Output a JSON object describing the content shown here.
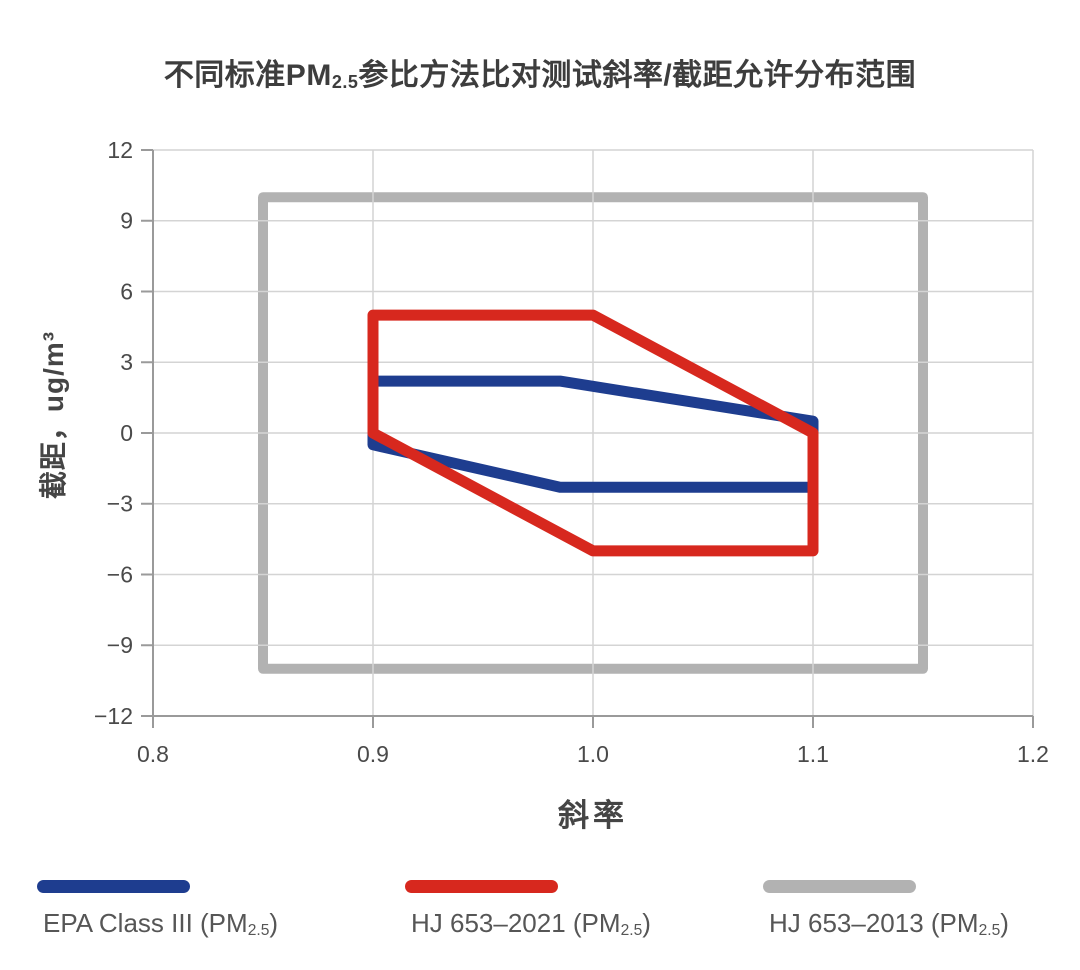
{
  "title": {
    "prefix": "不同标准PM",
    "sub": "2.5",
    "suffix": "参比方法比对测试斜率/截距允许分布范围"
  },
  "chart_data": {
    "type": "line",
    "subtype": "closed-polygon-acceptance-regions",
    "title": "不同标准PM2.5参比方法比对测试斜率/截距允许分布范围",
    "xlabel": "斜率",
    "ylabel": "截距，ug/m³",
    "xlim": [
      0.8,
      1.2
    ],
    "ylim": [
      -12,
      12
    ],
    "x_ticks": [
      0.8,
      0.9,
      1.0,
      1.1,
      1.2
    ],
    "x_tick_labels": [
      "0.8",
      "0.9",
      "1.0",
      "1.1",
      "1.2"
    ],
    "y_ticks": [
      12,
      9,
      6,
      3,
      0,
      -3,
      -6,
      -9,
      -12
    ],
    "y_tick_labels": [
      "12",
      "9",
      "6",
      "3",
      "0",
      "−3",
      "−6",
      "−9",
      "−12"
    ],
    "grid": true,
    "legend_position": "bottom",
    "series": [
      {
        "name": "EPA Class III (PM2.5)",
        "color": "#1e3d8f",
        "fill": "none",
        "line_width": 11,
        "closed": true,
        "vertices": [
          [
            0.9,
            2.2
          ],
          [
            0.985,
            2.2
          ],
          [
            1.1,
            0.5
          ],
          [
            1.1,
            -2.3
          ],
          [
            0.985,
            -2.3
          ],
          [
            0.9,
            -0.5
          ]
        ]
      },
      {
        "name": "HJ 653-2021 (PM2.5)",
        "color": "#d7281e",
        "fill": "none",
        "line_width": 11,
        "closed": true,
        "vertices": [
          [
            0.9,
            5
          ],
          [
            1.0,
            5
          ],
          [
            1.1,
            0
          ],
          [
            1.1,
            -5
          ],
          [
            1.0,
            -5
          ],
          [
            0.9,
            0
          ]
        ]
      },
      {
        "name": "HJ 653-2013 (PM2.5)",
        "color": "#b2b2b2",
        "fill": "none",
        "line_width": 10,
        "closed": true,
        "vertices": [
          [
            0.85,
            10
          ],
          [
            1.15,
            10
          ],
          [
            1.15,
            -10
          ],
          [
            0.85,
            -10
          ]
        ]
      }
    ]
  },
  "legend": {
    "items": [
      {
        "prefix": "EPA Class III (PM",
        "sub": "2.5",
        "suffix": ")",
        "color": "#1e3d8f"
      },
      {
        "prefix": "HJ 653–2021 (PM",
        "sub": "2.5",
        "suffix": ")",
        "color": "#d7281e"
      },
      {
        "prefix": "HJ 653–2013 (PM",
        "sub": "2.5",
        "suffix": ")",
        "color": "#b2b2b2"
      }
    ]
  },
  "colors": {
    "background": "#ffffff",
    "grid": "#d4d4d4",
    "spine": "#9a9a9a",
    "tick_label": "#4a4a4a",
    "axis_title": "#454545",
    "title": "#3d3d3d",
    "legend_text": "#565656"
  }
}
